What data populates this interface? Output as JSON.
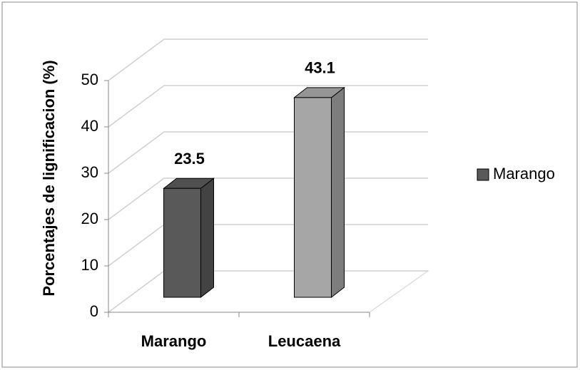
{
  "chart_data": {
    "type": "bar3d",
    "y_label": "Porcentajes de lignificacion (%)",
    "categories": [
      "Marango",
      "Leucaena"
    ],
    "series": [
      {
        "name": "Marango",
        "color": "#595959",
        "values": [
          23.5,
          43.1
        ]
      }
    ],
    "point_colors": [
      "#595959",
      "#a6a6a6"
    ],
    "ylim": [
      0,
      50
    ],
    "yticks": [
      0,
      10,
      20,
      30,
      40,
      50
    ],
    "grid": true,
    "legend": "right"
  }
}
